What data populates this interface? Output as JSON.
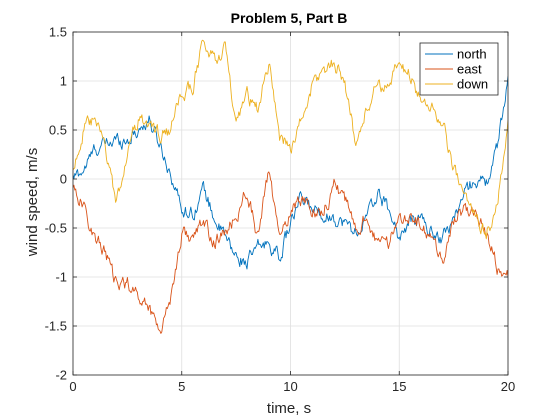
{
  "chart_data": {
    "type": "line",
    "title": "Problem 5, Part B",
    "xlabel": "time, s",
    "ylabel": "wind speed, m/s",
    "xlim": [
      0,
      20
    ],
    "ylim": [
      -2,
      1.5
    ],
    "xticks": [
      0,
      5,
      10,
      15,
      20
    ],
    "xtick_labels": [
      "0",
      "5",
      "10",
      "15",
      "20"
    ],
    "yticks": [
      -2,
      -1.5,
      -1,
      -0.5,
      0,
      0.5,
      1,
      1.5
    ],
    "ytick_labels": [
      "-2",
      "-1.5",
      "-1",
      "-0.5",
      "0",
      "0.5",
      "1",
      "1.5"
    ],
    "grid": true,
    "legend_position": "top-right",
    "series": [
      {
        "name": "north",
        "color": "#0072BD",
        "x": [
          0,
          0.5,
          1,
          1.5,
          2,
          2.5,
          3,
          3.5,
          4,
          4.5,
          5,
          5.5,
          6,
          6.5,
          7,
          7.5,
          8,
          8.5,
          9,
          9.5,
          10,
          10.5,
          11,
          11.5,
          12,
          12.5,
          13,
          13.5,
          14,
          14.5,
          15,
          15.5,
          16,
          16.5,
          17,
          17.5,
          18,
          18.5,
          19,
          19.5,
          20
        ],
        "values": [
          0,
          0.1,
          0.3,
          0.35,
          0.4,
          0.4,
          0.5,
          0.6,
          0.35,
          0.05,
          -0.3,
          -0.35,
          -0.1,
          -0.4,
          -0.6,
          -0.8,
          -0.85,
          -0.7,
          -0.65,
          -0.8,
          -0.45,
          -0.2,
          -0.3,
          -0.35,
          -0.4,
          -0.45,
          -0.55,
          -0.4,
          -0.15,
          -0.3,
          -0.6,
          -0.45,
          -0.4,
          -0.55,
          -0.6,
          -0.4,
          -0.15,
          0.0,
          -0.05,
          0.3,
          1.05
        ]
      },
      {
        "name": "east",
        "color": "#D95319",
        "x": [
          0,
          0.5,
          1,
          1.5,
          2,
          2.5,
          3,
          3.5,
          4,
          4.5,
          5,
          5.5,
          6,
          6.5,
          7,
          7.5,
          8,
          8.5,
          9,
          9.5,
          10,
          10.5,
          11,
          11.5,
          12,
          12.5,
          13,
          13.5,
          14,
          14.5,
          15,
          15.5,
          16,
          16.5,
          17,
          17.5,
          18,
          18.5,
          19,
          19.5,
          20
        ],
        "values": [
          -0.05,
          -0.3,
          -0.6,
          -0.75,
          -1.1,
          -1.05,
          -1.2,
          -1.3,
          -1.55,
          -1.2,
          -0.55,
          -0.6,
          -0.45,
          -0.65,
          -0.55,
          -0.4,
          -0.1,
          -0.6,
          0.1,
          -0.65,
          -0.3,
          -0.2,
          -0.3,
          -0.35,
          -0.05,
          -0.2,
          -0.55,
          -0.35,
          -0.7,
          -0.65,
          -0.4,
          -0.35,
          -0.5,
          -0.65,
          -0.8,
          -0.45,
          -0.3,
          -0.35,
          -0.55,
          -0.9,
          -1.0
        ]
      },
      {
        "name": "down",
        "color": "#EDB120",
        "x": [
          0,
          0.5,
          1,
          1.5,
          2,
          2.5,
          3,
          3.5,
          4,
          4.5,
          5,
          5.5,
          6,
          6.5,
          7,
          7.5,
          8,
          8.5,
          9,
          9.5,
          10,
          10.5,
          11,
          11.5,
          12,
          12.5,
          13,
          13.5,
          14,
          14.5,
          15,
          15.5,
          16,
          16.5,
          17,
          17.5,
          18,
          18.5,
          19,
          19.5,
          20
        ],
        "values": [
          0.1,
          0.5,
          0.6,
          0.3,
          -0.25,
          0.3,
          0.6,
          0.55,
          0.45,
          0.5,
          0.85,
          0.95,
          1.4,
          1.2,
          1.35,
          0.5,
          0.85,
          0.7,
          1.2,
          0.45,
          0.3,
          0.6,
          0.95,
          1.1,
          1.2,
          1.0,
          0.35,
          0.7,
          1.0,
          0.9,
          1.2,
          1.05,
          0.8,
          0.75,
          0.55,
          0.1,
          -0.2,
          -0.35,
          -0.55,
          -0.3,
          0.6
        ]
      }
    ]
  }
}
